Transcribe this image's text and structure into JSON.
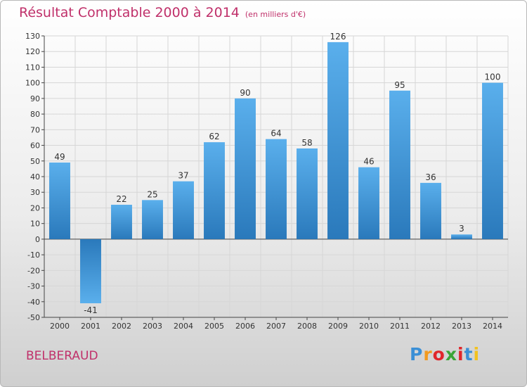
{
  "header": {
    "title": "Résultat Comptable 2000 à 2014",
    "unit": "(en milliers d'€)"
  },
  "footer": {
    "commune": "BELBERAUD",
    "logo": {
      "p": "P",
      "r": "r",
      "o": "o",
      "x": "x",
      "i1": "i",
      "t": "t",
      "i2": "i"
    }
  },
  "colors": {
    "bar_top": "#5aafec",
    "bar_bottom": "#2a79bb",
    "title": "#c0306a"
  },
  "chart_data": {
    "type": "bar",
    "title": "Résultat Comptable 2000 à 2014",
    "subtitle": "(en milliers d'€)",
    "xlabel": "",
    "ylabel": "",
    "categories": [
      "2000",
      "2001",
      "2002",
      "2003",
      "2004",
      "2005",
      "2006",
      "2007",
      "2008",
      "2009",
      "2010",
      "2011",
      "2012",
      "2013",
      "2014"
    ],
    "values": [
      49,
      -41,
      22,
      25,
      37,
      62,
      90,
      64,
      58,
      126,
      46,
      95,
      36,
      3,
      100
    ],
    "value_labels": [
      "49",
      "-41",
      "22",
      "25",
      "37",
      "62",
      "90",
      "64",
      "58",
      "126",
      "46",
      "95",
      "36",
      "3",
      "100"
    ],
    "ylim": [
      -50,
      130
    ],
    "yticks": [
      -50,
      -40,
      -30,
      -20,
      -10,
      0,
      10,
      20,
      30,
      40,
      50,
      60,
      70,
      80,
      90,
      100,
      110,
      120,
      130
    ],
    "ytick_labels": [
      "-50",
      "-40",
      "-30",
      "-20",
      "-10",
      "0",
      "10",
      "20",
      "30",
      "40",
      "50",
      "60",
      "70",
      "80",
      "90",
      "100",
      "110",
      "120",
      "130"
    ],
    "grid": true
  }
}
